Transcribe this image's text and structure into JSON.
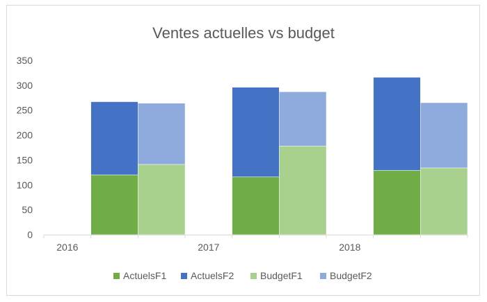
{
  "chart_data": {
    "type": "bar",
    "stacked": true,
    "title": "Ventes actuelles vs budget",
    "categories": [
      "2016",
      "2017",
      "2018"
    ],
    "series": [
      {
        "name": "ActuelsF1",
        "stack": "Actuels",
        "values": [
          120,
          116,
          129
        ],
        "color": "#70AD47"
      },
      {
        "name": "ActuelsF2",
        "stack": "Actuels",
        "values": [
          147,
          180,
          187
        ],
        "color": "#4472C4"
      },
      {
        "name": "BudgetF1",
        "stack": "Budget",
        "values": [
          141,
          178,
          134
        ],
        "color": "#A9D18E"
      },
      {
        "name": "BudgetF2",
        "stack": "Budget",
        "values": [
          123,
          109,
          131
        ],
        "color": "#8FAADC"
      }
    ],
    "xlabel": "",
    "ylabel": "",
    "ylim": [
      0,
      350
    ],
    "yticks": [
      0,
      50,
      100,
      150,
      200,
      250,
      300,
      350
    ],
    "grid": false,
    "legend": "bottom"
  }
}
